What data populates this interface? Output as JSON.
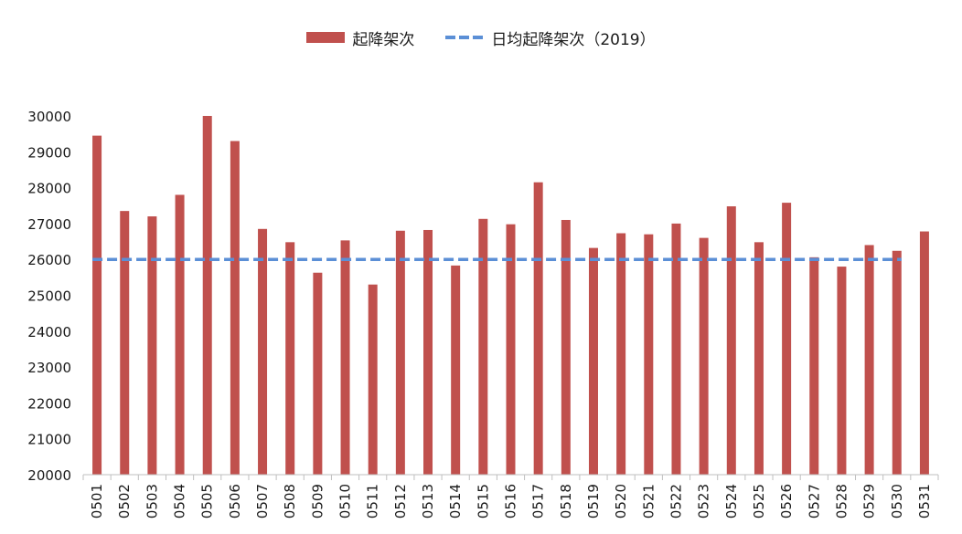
{
  "chart_data": {
    "type": "bar",
    "title": "",
    "xlabel": "",
    "ylabel": "",
    "ylim": [
      20000,
      30000
    ],
    "yticks": [
      20000,
      21000,
      22000,
      23000,
      24000,
      25000,
      26000,
      27000,
      28000,
      29000,
      30000
    ],
    "grid": false,
    "legend_position": "top-center",
    "categories": [
      "0501",
      "0502",
      "0503",
      "0504",
      "0505",
      "0506",
      "0507",
      "0508",
      "0509",
      "0510",
      "0511",
      "0512",
      "0513",
      "0514",
      "0515",
      "0516",
      "0517",
      "0518",
      "0519",
      "0520",
      "0521",
      "0522",
      "0523",
      "0524",
      "0525",
      "0526",
      "0527",
      "0528",
      "0529",
      "0530",
      "0531"
    ],
    "series": [
      {
        "name": "起降架次",
        "type": "bar",
        "color": "#c0504d",
        "values": [
          29450,
          27350,
          27200,
          27800,
          30000,
          29300,
          26850,
          26480,
          25630,
          26530,
          25300,
          26800,
          26820,
          25830,
          27130,
          26980,
          28150,
          27100,
          26320,
          26730,
          26700,
          27000,
          26600,
          27480,
          26480,
          27580,
          26060,
          25800,
          26400,
          26240,
          26780
        ]
      },
      {
        "name": "日均起降架次（2019）",
        "type": "line",
        "style": "dashed",
        "color": "#5b8fd6",
        "value": 26000
      }
    ]
  }
}
